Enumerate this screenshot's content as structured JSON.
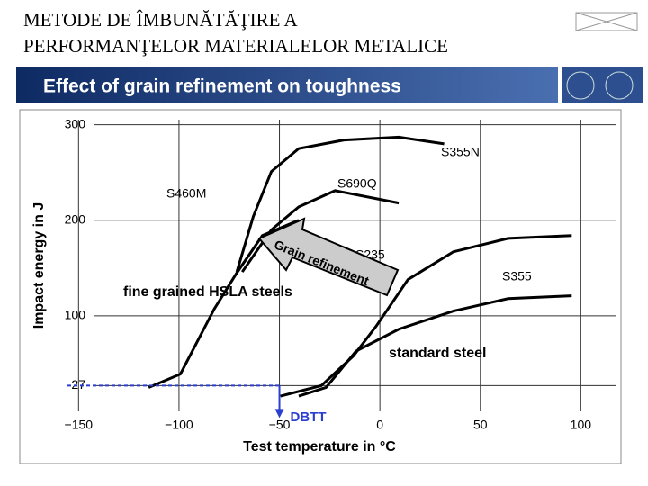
{
  "slide_title": "METODE DE ÎMBUNĂTĂŢIRE A PERFORMANŢELOR MATERIALELOR METALICE",
  "banner": "Effect of grain refinement on toughness",
  "chart_data": {
    "type": "line",
    "x_label": "Test temperature in °C",
    "y_label": "Impact energy in J",
    "xlim": [
      -160,
      120
    ],
    "ylim": [
      0,
      310
    ],
    "xticks": [
      {
        "value": -150,
        "label": "−150"
      },
      {
        "value": -100,
        "label": "−100"
      },
      {
        "value": -50,
        "label": "−50"
      },
      0,
      50,
      100
    ],
    "yticks": [
      300,
      200,
      100,
      27
    ],
    "grid": true,
    "series": [
      {
        "name": "S355N",
        "color": "#000000",
        "x": [
          -71.2,
          -63,
          -54,
          -40.4,
          -17.7,
          9.4,
          32
        ],
        "values": [
          146,
          204,
          251,
          275,
          284,
          287,
          280
        ]
      },
      {
        "name": "S690Q",
        "color": "#000000",
        "x": [
          -68.5,
          -54,
          -40.4,
          -22.3,
          9.4
        ],
        "values": [
          146,
          190,
          214,
          231,
          218
        ]
      },
      {
        "name": "S460M",
        "color": "#000000",
        "x": [
          -115.1,
          -99.3,
          -82.5,
          -71.2,
          -58.5,
          -40.4
        ],
        "values": [
          25,
          39,
          107,
          145,
          184,
          200
        ]
      },
      {
        "name": "S235",
        "color": "#000000",
        "x": [
          -49.5,
          -29.1,
          -13.2,
          -1.9,
          14,
          36.6,
          63.8,
          95.5
        ],
        "values": [
          16,
          27,
          58,
          89,
          138,
          167,
          181,
          184
        ]
      },
      {
        "name": "S355",
        "color": "#000000",
        "x": [
          -40.4,
          -26.8,
          -11.9,
          9.4,
          36.6,
          63.8,
          95.5
        ],
        "values": [
          16,
          25,
          63,
          86,
          105,
          118,
          121
        ]
      }
    ],
    "annotations": {
      "dbtt": "DBTT",
      "grain": "Grain refinement",
      "hsla": "fine grained HSLA steels",
      "standard": "standard steel"
    }
  }
}
